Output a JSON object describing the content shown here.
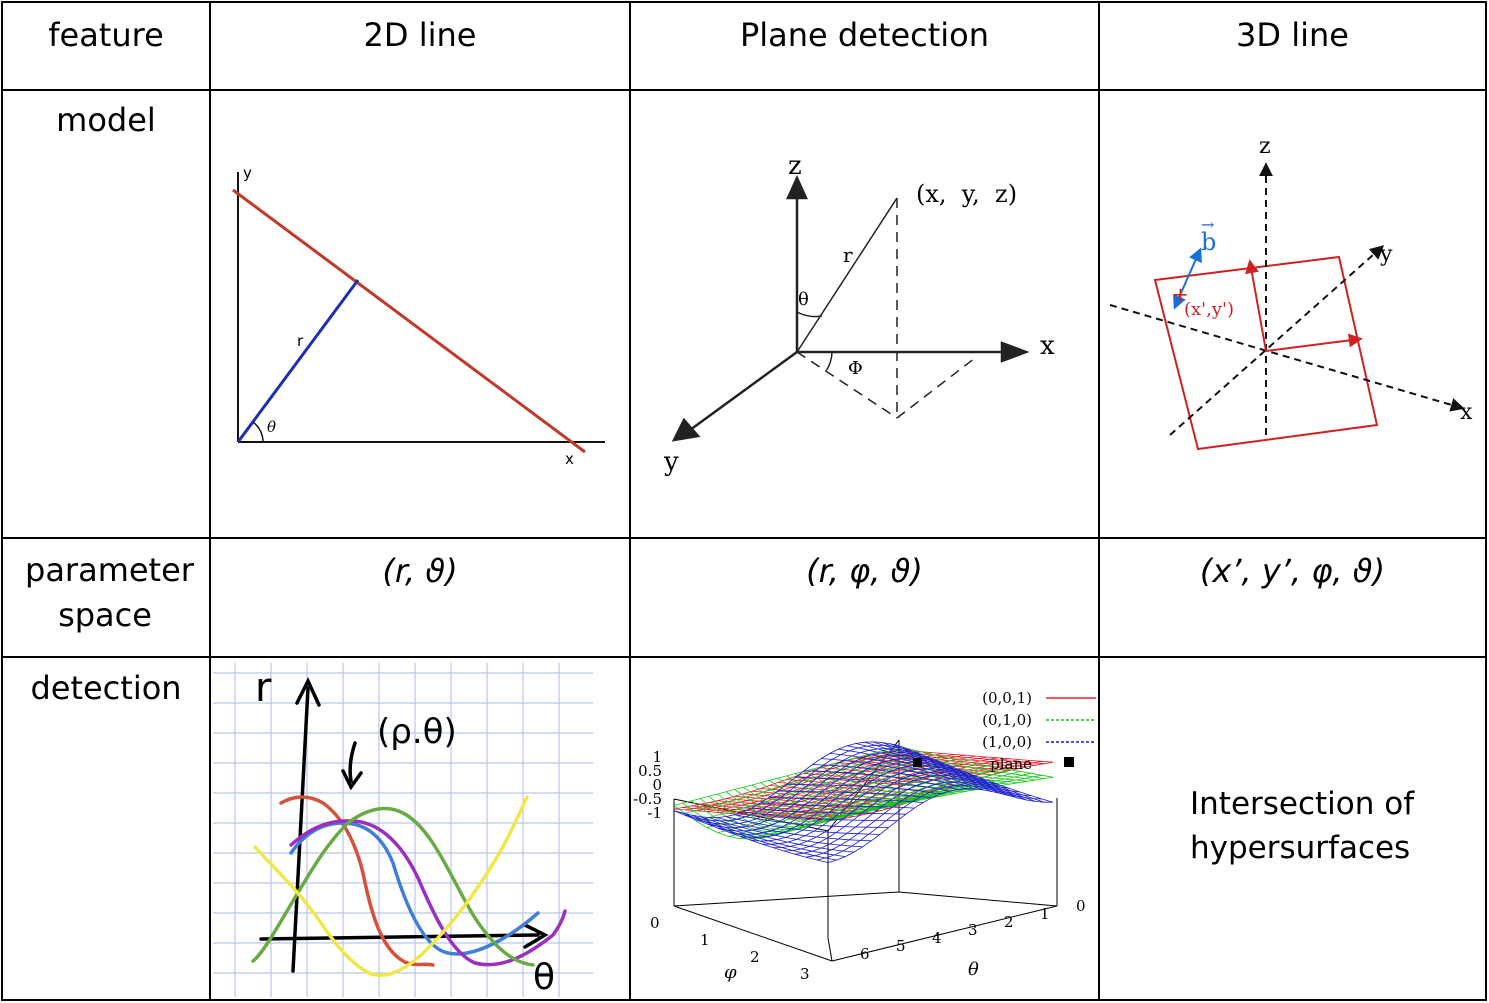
{
  "table": {
    "headers": [
      "feature",
      "2D line",
      "Plane detection",
      "3D line"
    ],
    "rows": {
      "model": "model",
      "parameter": "parameter space",
      "detection": "detection"
    },
    "params": [
      "(r, ϑ)",
      "(r, φ, ϑ)",
      "(x’, y’, φ, ϑ)"
    ],
    "intersection_note": "Intersection of hypersurfaces"
  },
  "diagram_2d_line": {
    "labels": {
      "y": "y",
      "x": "x",
      "r": "r",
      "theta": "θ"
    },
    "colors": {
      "line": "#c0392b",
      "normal": "#1f2db0"
    }
  },
  "diagram_plane": {
    "labels": {
      "z": "z",
      "x": "x",
      "y": "y",
      "point": "(x,  y,  z)",
      "r": "r",
      "theta": "θ",
      "phi": "Φ"
    }
  },
  "diagram_3d_line": {
    "labels": {
      "z": "z",
      "y": "y",
      "x": "x",
      "b": "b",
      "xy": "(x',y')"
    },
    "colors": {
      "plane": "#cc2222",
      "vector": "#1a6fd6"
    }
  },
  "sketch_detection": {
    "labels": {
      "r": "r",
      "rho_theta": "(ρ.θ)",
      "theta": "θ"
    },
    "colors": {
      "red": "#d6503a",
      "blue": "#3f7fd8",
      "purple": "#9a2fc0",
      "green": "#6aaa44",
      "yellow": "#f0e84a"
    }
  },
  "surface_plot": {
    "legend": [
      {
        "label": "(0,0,1)",
        "color": "#e8202a"
      },
      {
        "label": "(0,1,0)",
        "color": "#18c818"
      },
      {
        "label": "(1,0,0)",
        "color": "#1a1ad8"
      },
      {
        "label": "plane",
        "color": "#000000"
      }
    ],
    "z_ticks": [
      "1",
      "0.5",
      "0",
      "-0.5",
      "-1"
    ],
    "phi_ticks": [
      "0",
      "1",
      "2",
      "3"
    ],
    "theta_ticks": [
      "6",
      "5",
      "4",
      "3",
      "2",
      "1",
      "0"
    ],
    "phi_label": "φ",
    "theta_label": "θ"
  }
}
